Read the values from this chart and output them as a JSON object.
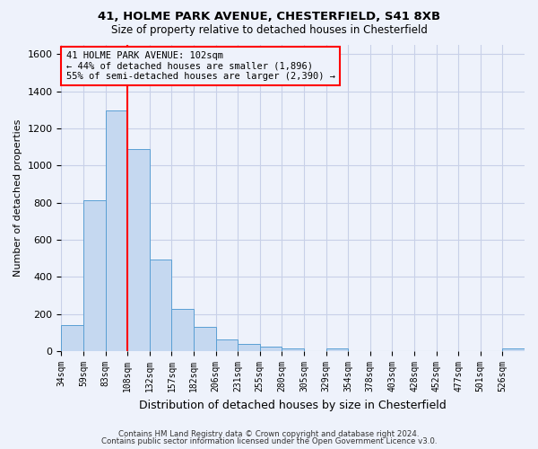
{
  "title1": "41, HOLME PARK AVENUE, CHESTERFIELD, S41 8XB",
  "title2": "Size of property relative to detached houses in Chesterfield",
  "xlabel": "Distribution of detached houses by size in Chesterfield",
  "ylabel": "Number of detached properties",
  "bin_labels": [
    "34sqm",
    "59sqm",
    "83sqm",
    "108sqm",
    "132sqm",
    "157sqm",
    "182sqm",
    "206sqm",
    "231sqm",
    "255sqm",
    "280sqm",
    "305sqm",
    "329sqm",
    "354sqm",
    "378sqm",
    "403sqm",
    "428sqm",
    "452sqm",
    "477sqm",
    "501sqm",
    "526sqm"
  ],
  "bar_values": [
    140,
    815,
    1295,
    1090,
    495,
    230,
    130,
    65,
    38,
    25,
    15,
    2,
    15,
    2,
    2,
    2,
    2,
    2,
    2,
    2,
    15
  ],
  "bar_color": "#c5d8f0",
  "bar_edge_color": "#5a9fd4",
  "ylim": [
    0,
    1650
  ],
  "yticks": [
    0,
    200,
    400,
    600,
    800,
    1000,
    1200,
    1400,
    1600
  ],
  "red_line_x": 3,
  "annotation_text": "41 HOLME PARK AVENUE: 102sqm\n← 44% of detached houses are smaller (1,896)\n55% of semi-detached houses are larger (2,390) →",
  "footer1": "Contains HM Land Registry data © Crown copyright and database right 2024.",
  "footer2": "Contains public sector information licensed under the Open Government Licence v3.0.",
  "bg_color": "#eef2fb",
  "grid_color": "#c8d0e8"
}
